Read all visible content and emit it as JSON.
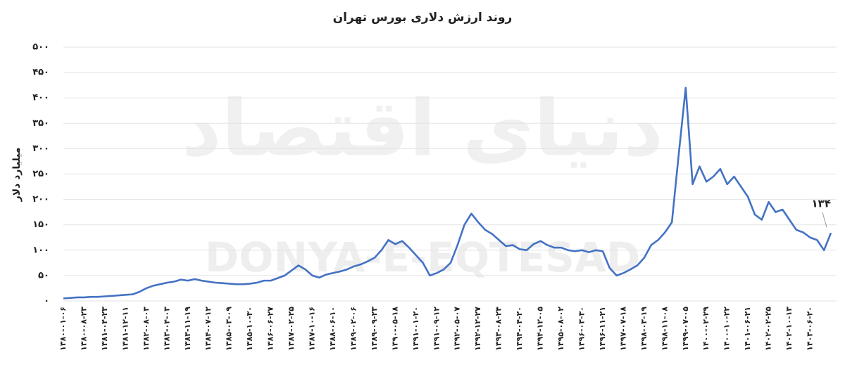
{
  "chart_data": {
    "type": "line",
    "title": "روند ارزش دلاری بورس تهران",
    "y_label": "میلیارد دلار",
    "watermark": "DONYA-E-EQTESAD",
    "watermark_fa": "دنیای اقتصاد",
    "annotation": "۱۳۴",
    "ylim": [
      0,
      500
    ],
    "yticks": [
      {
        "value": 0,
        "label": "۰"
      },
      {
        "value": 50,
        "label": "۵۰"
      },
      {
        "value": 100,
        "label": "۱۰۰"
      },
      {
        "value": 150,
        "label": "۱۵۰"
      },
      {
        "value": 200,
        "label": "۲۰۰"
      },
      {
        "value": 250,
        "label": "۲۵۰"
      },
      {
        "value": 300,
        "label": "۳۰۰"
      },
      {
        "value": 350,
        "label": "۳۵۰"
      },
      {
        "value": 400,
        "label": "۴۰۰"
      },
      {
        "value": 450,
        "label": "۴۵۰"
      },
      {
        "value": 500,
        "label": "۵۰۰"
      }
    ],
    "grid": true,
    "categories": [
      "۱۳۸۰-۰۱-۰۶",
      null,
      null,
      "۱۳۸۰-۰۸-۲۳",
      null,
      null,
      "۱۳۸۱-۰۴-۲۳",
      null,
      null,
      "۱۳۸۱-۱۲-۱۱",
      null,
      null,
      "۱۳۸۲-۰۸-۰۳",
      null,
      null,
      "۱۳۸۳-۰۴-۰۳",
      null,
      null,
      "۱۳۸۳-۱۱-۱۹",
      null,
      null,
      "۱۳۸۴-۰۷-۱۲",
      null,
      null,
      "۱۳۸۵-۰۳-۰۹",
      null,
      null,
      "۱۳۸۵-۱۰-۳۰",
      null,
      null,
      "۱۳۸۶-۰۶-۲۷",
      null,
      null,
      "۱۳۸۷-۰۲-۲۵",
      null,
      null,
      "۱۳۸۷-۱۰-۱۶",
      null,
      null,
      "۱۳۸۸-۰۶-۱۰",
      null,
      null,
      "۱۳۸۹-۰۲-۰۶",
      null,
      null,
      "۱۳۸۹-۰۹-۲۳",
      null,
      null,
      "۱۳۹۰-۰۵-۱۸",
      null,
      null,
      "۱۳۹۱-۰۱-۲۰",
      null,
      null,
      "۱۳۹۱-۰۹-۱۲",
      null,
      null,
      "۱۳۹۲-۰۵-۰۷",
      null,
      null,
      "۱۳۹۲-۱۲-۲۷",
      null,
      null,
      "۱۳۹۳-۰۸-۲۴",
      null,
      null,
      "۱۳۹۴-۰۴-۲۰",
      null,
      null,
      "۱۳۹۴-۱۲-۰۵",
      null,
      null,
      "۱۳۹۵-۰۸-۰۲",
      null,
      null,
      "۱۳۹۶-۰۳-۳۰",
      null,
      null,
      "۱۳۹۶-۱۱-۲۱",
      null,
      null,
      "۱۳۹۷-۰۷-۱۸",
      null,
      null,
      "۱۳۹۸-۰۳-۱۹",
      null,
      null,
      "۱۳۹۸-۱۱-۰۸",
      null,
      null,
      "۱۳۹۹-۰۷-۰۵",
      null,
      null,
      "۱۴۰۰-۰۲-۲۹",
      null,
      null,
      "۱۴۰۰-۱۰-۲۲",
      null,
      null,
      "۱۴۰۱-۰۶-۲۱",
      null,
      null,
      "۱۴۰۲-۰۲-۲۵",
      null,
      null,
      "۱۴۰۲-۱۰-۱۳",
      null,
      null,
      "۱۴۰۳-۰۶-۲۰",
      null,
      null,
      null
    ],
    "series": [
      {
        "color": "#4472c4",
        "values": [
          5,
          6,
          7,
          7,
          8,
          8,
          9,
          10,
          11,
          12,
          13,
          18,
          25,
          30,
          33,
          36,
          38,
          42,
          40,
          43,
          40,
          38,
          36,
          35,
          34,
          33,
          33,
          34,
          36,
          40,
          40,
          45,
          50,
          60,
          70,
          62,
          50,
          46,
          52,
          55,
          58,
          62,
          68,
          72,
          78,
          85,
          100,
          120,
          112,
          118,
          105,
          90,
          75,
          50,
          55,
          62,
          75,
          110,
          150,
          172,
          155,
          140,
          132,
          120,
          108,
          110,
          102,
          100,
          112,
          118,
          110,
          105,
          105,
          100,
          98,
          100,
          96,
          100,
          98,
          65,
          50,
          55,
          62,
          70,
          85,
          110,
          120,
          135,
          155,
          290,
          420,
          230,
          265,
          235,
          245,
          260,
          230,
          245,
          225,
          205,
          170,
          160,
          195,
          175,
          180,
          160,
          140,
          135,
          125,
          120,
          100,
          134
        ]
      }
    ]
  }
}
